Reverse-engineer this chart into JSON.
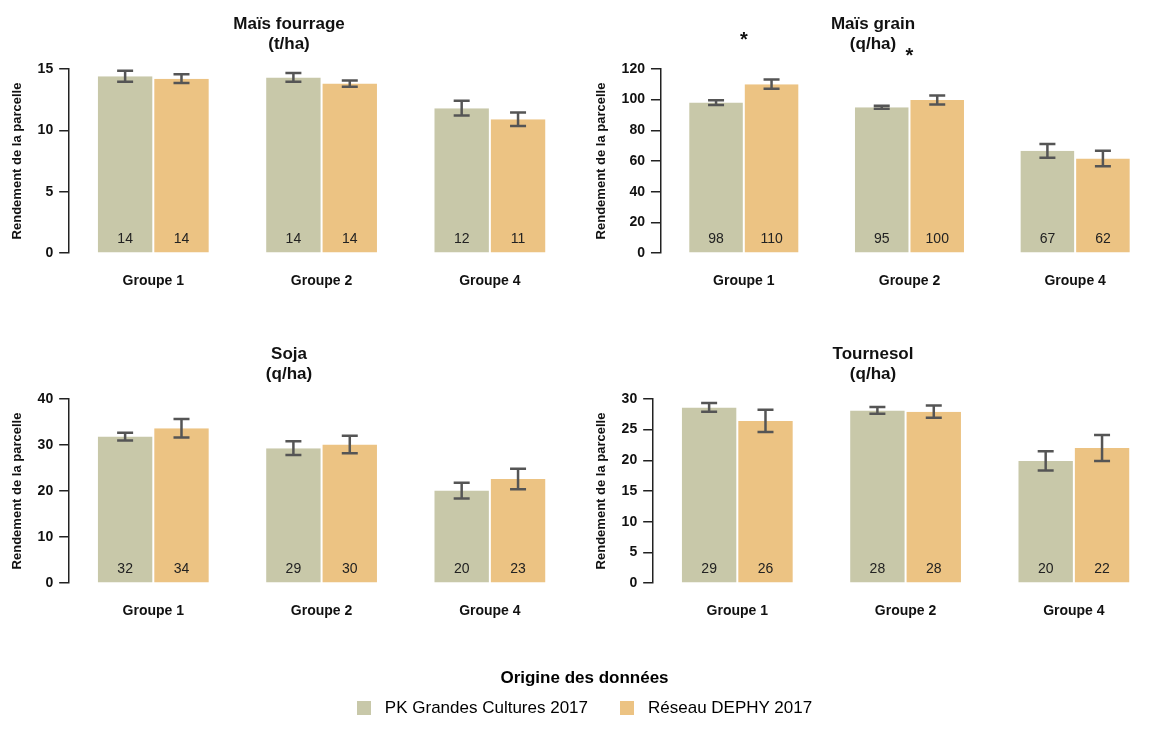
{
  "chart_data": [
    {
      "type": "bar",
      "title": "Maïs fourrage",
      "subtitle": "(t/ha)",
      "ylabel": "Rendement de la parcelle",
      "categories": [
        "Groupe 1",
        "Groupe 2",
        "Groupe 4"
      ],
      "ylim": [
        0,
        15
      ],
      "yticks": [
        0,
        5,
        10,
        15
      ],
      "grid": false,
      "legend": "bottom",
      "legend_title": "Origine des données",
      "series": [
        {
          "name": "PK Grandes Cultures 2017",
          "color": "#c8c8a9",
          "values": [
            14.4,
            14.3,
            11.8
          ],
          "errors": [
            0.45,
            0.35,
            0.6
          ],
          "value_labels": [
            "14",
            "14",
            "12"
          ]
        },
        {
          "name": "Réseau DEPHY 2017",
          "color": "#ecc383",
          "values": [
            14.2,
            13.8,
            10.9
          ],
          "errors": [
            0.35,
            0.25,
            0.55
          ],
          "value_labels": [
            "14",
            "14",
            "11"
          ]
        }
      ]
    },
    {
      "type": "bar",
      "title": "Maïs grain",
      "subtitle": "(q/ha)",
      "ylabel": "Rendement de la parcelle",
      "categories": [
        "Groupe 1",
        "Groupe 2",
        "Groupe 4"
      ],
      "ylim": [
        0,
        120
      ],
      "yticks": [
        0,
        20,
        40,
        60,
        80,
        100,
        120
      ],
      "grid": false,
      "annotations": [
        {
          "text": "*",
          "x": "Groupe 1",
          "y": 110
        },
        {
          "text": "*",
          "x": "Groupe 2",
          "y": 99.7
        }
      ],
      "series": [
        {
          "color": "#c8c8a9",
          "values": [
            98,
            95,
            66.6
          ],
          "errors": [
            1.5,
            1,
            4.5
          ],
          "value_labels": [
            "98",
            "95",
            "67"
          ]
        },
        {
          "color": "#ecc383",
          "values": [
            110,
            99.7,
            61.6
          ],
          "errors": [
            3,
            3,
            5
          ],
          "value_labels": [
            "110",
            "100",
            "62"
          ]
        }
      ]
    },
    {
      "type": "bar",
      "title": "Soja",
      "subtitle": "(q/ha)",
      "ylabel": "Rendement de la parcelle",
      "categories": [
        "Groupe 1",
        "Groupe 2",
        "Groupe 4"
      ],
      "ylim": [
        0,
        40
      ],
      "yticks": [
        0,
        10,
        20,
        30,
        40
      ],
      "grid": false,
      "series": [
        {
          "color": "#c8c8a9",
          "values": [
            31.8,
            29.3,
            20.1
          ],
          "errors": [
            0.85,
            1.5,
            1.7
          ],
          "value_labels": [
            "32",
            "29",
            "20"
          ]
        },
        {
          "color": "#ecc383",
          "values": [
            33.6,
            30.1,
            22.6
          ],
          "errors": [
            2,
            1.9,
            2.2
          ],
          "value_labels": [
            "34",
            "30",
            "23"
          ]
        }
      ]
    },
    {
      "type": "bar",
      "title": "Tournesol",
      "subtitle": "(q/ha)",
      "ylabel": "Rendement de la parcelle",
      "categories": [
        "Groupe 1",
        "Groupe 2",
        "Groupe 4"
      ],
      "ylim": [
        0,
        30
      ],
      "yticks": [
        0,
        5,
        10,
        15,
        20,
        25,
        30
      ],
      "grid": false,
      "series": [
        {
          "color": "#c8c8a9",
          "values": [
            28.6,
            28.1,
            19.9
          ],
          "errors": [
            0.7,
            0.55,
            1.55
          ],
          "value_labels": [
            "29",
            "28",
            "20"
          ]
        },
        {
          "color": "#ecc383",
          "values": [
            26.4,
            27.9,
            22.0
          ],
          "errors": [
            1.8,
            1,
            2.1
          ],
          "value_labels": [
            "26",
            "28",
            "22"
          ]
        }
      ]
    }
  ]
}
